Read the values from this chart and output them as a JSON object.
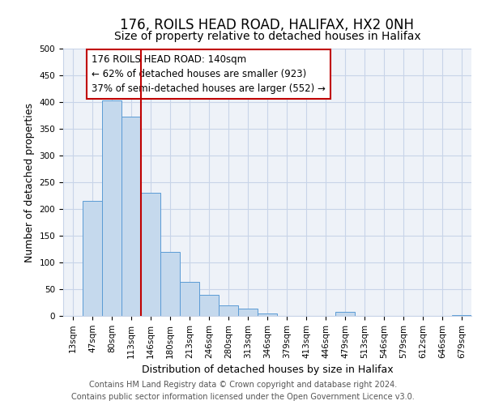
{
  "title": "176, ROILS HEAD ROAD, HALIFAX, HX2 0NH",
  "subtitle": "Size of property relative to detached houses in Halifax",
  "xlabel": "Distribution of detached houses by size in Halifax",
  "ylabel": "Number of detached properties",
  "categories": [
    "13sqm",
    "47sqm",
    "80sqm",
    "113sqm",
    "146sqm",
    "180sqm",
    "213sqm",
    "246sqm",
    "280sqm",
    "313sqm",
    "346sqm",
    "379sqm",
    "413sqm",
    "446sqm",
    "479sqm",
    "513sqm",
    "546sqm",
    "579sqm",
    "612sqm",
    "646sqm",
    "679sqm"
  ],
  "values": [
    0,
    215,
    403,
    372,
    230,
    119,
    63,
    39,
    20,
    14,
    5,
    0,
    0,
    0,
    7,
    0,
    0,
    0,
    0,
    0,
    2
  ],
  "bar_color": "#c5d9ed",
  "bar_edge_color": "#5b9bd5",
  "vline_x_index": 3,
  "vline_color": "#c00000",
  "annotation_title": "176 ROILS HEAD ROAD: 140sqm",
  "annotation_line1": "← 62% of detached houses are smaller (923)",
  "annotation_line2": "37% of semi-detached houses are larger (552) →",
  "annotation_box_color": "#ffffff",
  "annotation_border_color": "#c00000",
  "ylim": [
    0,
    500
  ],
  "footer_line1": "Contains HM Land Registry data © Crown copyright and database right 2024.",
  "footer_line2": "Contains public sector information licensed under the Open Government Licence v3.0.",
  "background_color": "#ffffff",
  "grid_color": "#c8d4e8",
  "plot_bg_color": "#eef2f8",
  "title_fontsize": 12,
  "subtitle_fontsize": 10,
  "label_fontsize": 9,
  "tick_fontsize": 7.5,
  "annotation_fontsize": 8.5,
  "footer_fontsize": 7
}
